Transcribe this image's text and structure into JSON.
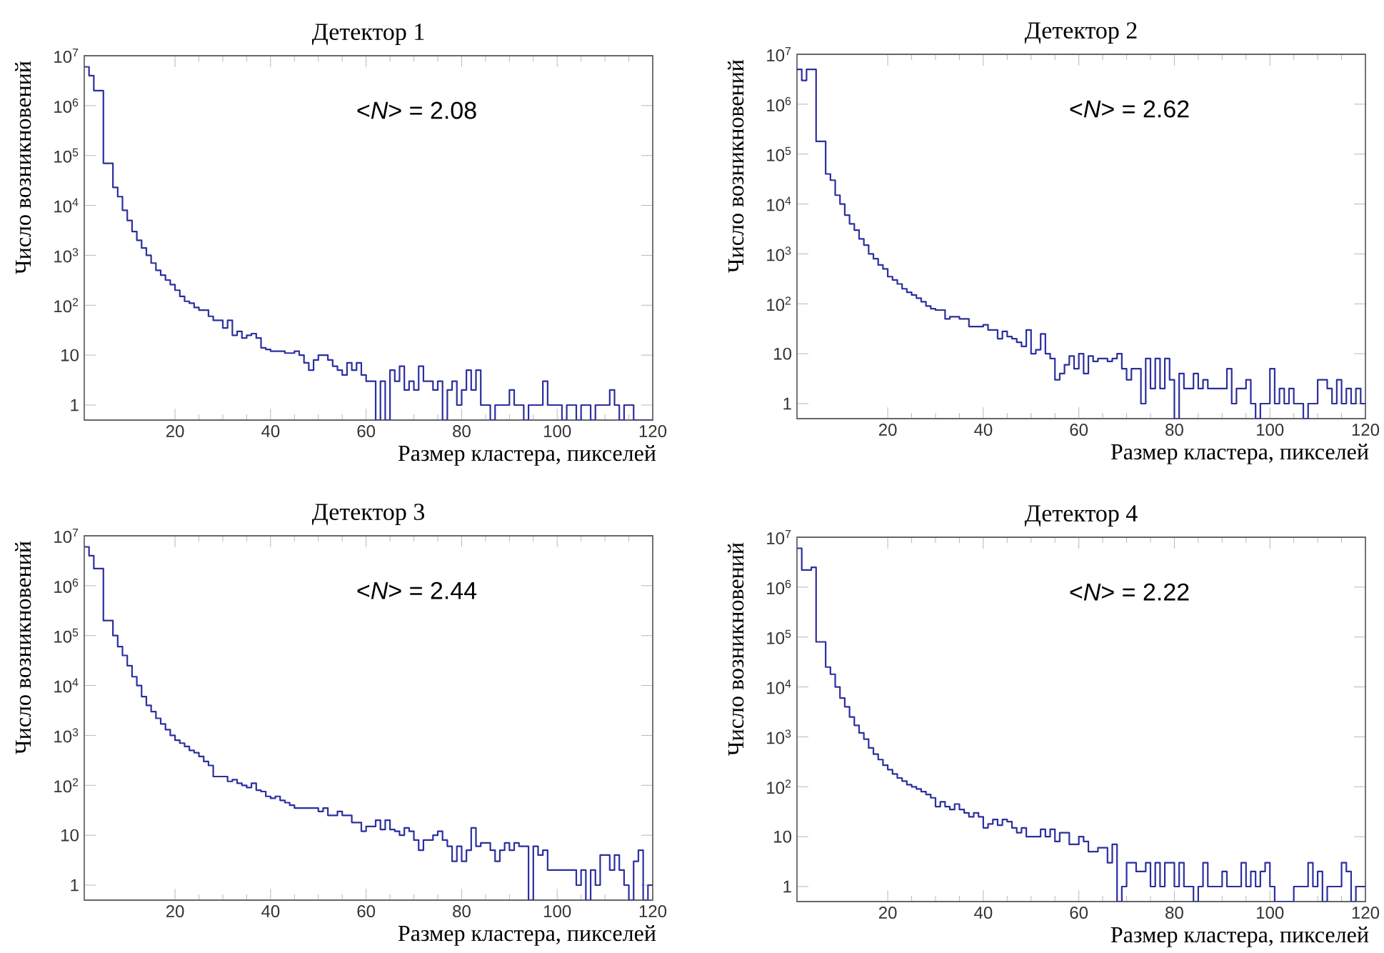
{
  "chart_data": [
    {
      "type": "histogram",
      "title": "Детектор 1",
      "xlabel": "Размер кластера, пикселей",
      "ylabel": "Число возникновений",
      "annotations": [
        "<*N*> = 2.08"
      ],
      "color": "#2b2f9e",
      "log": true,
      "xlim": [
        1,
        120
      ],
      "xticks": [
        20,
        40,
        60,
        80,
        100,
        120
      ],
      "ylim": [
        0.5,
        10000000
      ],
      "yticks": [
        1,
        10,
        {
          "value": 100,
          "label": "10$^{2}$"
        },
        {
          "value": 1000,
          "label": "10$^{3}$"
        },
        {
          "value": 10000,
          "label": "10$^{4}$"
        },
        {
          "value": 100000,
          "label": "10$^{5}$"
        },
        {
          "value": 1000000,
          "label": "10$^{6}$"
        },
        {
          "value": 10000000,
          "label": "10$^{7}$"
        }
      ],
      "bins": [
        1,
        2,
        3,
        4,
        5,
        6,
        7,
        8,
        9,
        10,
        11,
        12,
        13,
        14,
        15,
        16,
        17,
        18,
        19,
        20,
        21,
        22,
        23,
        24,
        25,
        26,
        27,
        28,
        29,
        30,
        31,
        32,
        33,
        34,
        35,
        36,
        37,
        38,
        39,
        40,
        41,
        42,
        43,
        44,
        45,
        46,
        47,
        48,
        49,
        50,
        51,
        52,
        53,
        54,
        55,
        56,
        57,
        58,
        59,
        60,
        61,
        62,
        63,
        64,
        65,
        66,
        67,
        68,
        69,
        70,
        71,
        72,
        73,
        74,
        75,
        76,
        77,
        78,
        79,
        80,
        81,
        82,
        83,
        84,
        85,
        86,
        87,
        88,
        89,
        90,
        91,
        92,
        93,
        94,
        95,
        96,
        97,
        98,
        99,
        100,
        101,
        102,
        103,
        104,
        105,
        106,
        107,
        108,
        109,
        110,
        111,
        112,
        113,
        114,
        115,
        116,
        117,
        118,
        119,
        120
      ],
      "values": [
        6000000.0,
        4000000.0,
        2000000.0,
        2000000.0,
        70000.0,
        70000.0,
        23000.0,
        15000.0,
        8000.0,
        5000.0,
        3000.0,
        2000.0,
        1400.0,
        1000.0,
        700,
        500,
        400,
        320,
        260,
        200,
        150,
        120,
        110,
        90,
        80,
        80,
        60,
        50,
        50,
        35,
        50,
        25,
        30,
        22,
        25,
        27,
        22,
        14,
        13,
        12,
        12,
        12,
        11,
        11,
        12,
        10,
        7,
        5,
        8,
        10,
        10,
        8,
        6,
        5,
        4,
        7,
        5,
        7,
        4,
        3,
        3,
        null,
        3,
        null,
        5,
        3,
        6,
        2,
        3,
        2,
        6,
        3,
        3,
        2,
        3,
        null,
        2,
        3,
        1,
        2,
        5,
        2,
        5,
        1,
        1,
        null,
        1,
        1,
        1,
        2,
        1,
        1,
        null,
        1,
        1,
        1,
        3,
        1,
        1,
        1,
        null,
        1,
        1,
        null,
        1,
        1,
        null,
        1,
        1,
        1,
        2,
        1,
        null,
        1,
        1,
        null,
        null,
        null,
        null
      ]
    },
    {
      "type": "histogram",
      "title": "Детектор 2",
      "xlabel": "Размер кластера, пикселей",
      "ylabel": "Число возникновений",
      "annotations": [
        "<*N*> = 2.62"
      ],
      "color": "#2b2f9e",
      "log": true,
      "xlim": [
        1,
        120
      ],
      "xticks": [
        20,
        40,
        60,
        80,
        100,
        120
      ],
      "ylim": [
        0.5,
        10000000
      ],
      "yticks": [
        1,
        10,
        {
          "value": 100,
          "label": "10$^{2}$"
        },
        {
          "value": 1000,
          "label": "10$^{3}$"
        },
        {
          "value": 10000,
          "label": "10$^{4}$"
        },
        {
          "value": 100000,
          "label": "10$^{5}$"
        },
        {
          "value": 1000000,
          "label": "10$^{6}$"
        },
        {
          "value": 10000000,
          "label": "10$^{7}$"
        }
      ],
      "bins": [
        1,
        2,
        3,
        4,
        5,
        6,
        7,
        8,
        9,
        10,
        11,
        12,
        13,
        14,
        15,
        16,
        17,
        18,
        19,
        20,
        21,
        22,
        23,
        24,
        25,
        26,
        27,
        28,
        29,
        30,
        31,
        32,
        33,
        34,
        35,
        36,
        37,
        38,
        39,
        40,
        41,
        42,
        43,
        44,
        45,
        46,
        47,
        48,
        49,
        50,
        51,
        52,
        53,
        54,
        55,
        56,
        57,
        58,
        59,
        60,
        61,
        62,
        63,
        64,
        65,
        66,
        67,
        68,
        69,
        70,
        71,
        72,
        73,
        74,
        75,
        76,
        77,
        78,
        79,
        80,
        81,
        82,
        83,
        84,
        85,
        86,
        87,
        88,
        89,
        90,
        91,
        92,
        93,
        94,
        95,
        96,
        97,
        98,
        99,
        100,
        101,
        102,
        103,
        104,
        105,
        106,
        107,
        108,
        109,
        110,
        111,
        112,
        113,
        114,
        115,
        116,
        117,
        118,
        119,
        120
      ],
      "values": [
        5000000.0,
        3000000.0,
        5000000.0,
        5000000.0,
        180000.0,
        180000.0,
        40000.0,
        30000.0,
        15000.0,
        10000.0,
        6000.0,
        4000.0,
        3000.0,
        2000.0,
        1500.0,
        1000.0,
        800,
        600,
        500,
        350,
        300,
        250,
        200,
        170,
        150,
        130,
        110,
        90,
        80,
        75,
        75,
        50,
        55,
        55,
        50,
        50,
        35,
        35,
        35,
        38,
        30,
        30,
        20,
        28,
        22,
        20,
        17,
        14,
        30,
        10,
        12,
        25,
        10,
        8,
        3,
        4,
        6,
        9,
        5,
        10,
        4,
        9,
        7,
        8,
        8,
        7,
        8,
        10,
        5,
        3,
        5,
        5,
        1,
        8,
        2,
        8,
        2,
        8,
        3,
        null,
        4,
        2,
        2,
        4,
        2,
        3,
        2,
        2,
        2,
        2,
        5,
        1,
        2,
        2,
        3,
        1,
        null,
        1,
        1,
        5,
        1,
        2,
        1,
        2,
        1,
        1,
        null,
        1,
        1,
        3,
        3,
        2,
        1,
        3,
        1,
        2,
        1,
        2,
        1
      ]
    },
    {
      "type": "histogram",
      "title": "Детектор 3",
      "xlabel": "Размер кластера, пикселей",
      "ylabel": "Число возникновений",
      "annotations": [
        "<*N*> = 2.44"
      ],
      "color": "#2b2f9e",
      "log": true,
      "xlim": [
        1,
        120
      ],
      "xticks": [
        20,
        40,
        60,
        80,
        100,
        120
      ],
      "ylim": [
        0.5,
        10000000
      ],
      "yticks": [
        1,
        10,
        {
          "value": 100,
          "label": "10$^{2}$"
        },
        {
          "value": 1000,
          "label": "10$^{3}$"
        },
        {
          "value": 10000,
          "label": "10$^{4}$"
        },
        {
          "value": 100000,
          "label": "10$^{5}$"
        },
        {
          "value": 1000000,
          "label": "10$^{6}$"
        },
        {
          "value": 10000000,
          "label": "10$^{7}$"
        }
      ],
      "bins": [
        1,
        2,
        3,
        4,
        5,
        6,
        7,
        8,
        9,
        10,
        11,
        12,
        13,
        14,
        15,
        16,
        17,
        18,
        19,
        20,
        21,
        22,
        23,
        24,
        25,
        26,
        27,
        28,
        29,
        30,
        31,
        32,
        33,
        34,
        35,
        36,
        37,
        38,
        39,
        40,
        41,
        42,
        43,
        44,
        45,
        46,
        47,
        48,
        49,
        50,
        51,
        52,
        53,
        54,
        55,
        56,
        57,
        58,
        59,
        60,
        61,
        62,
        63,
        64,
        65,
        66,
        67,
        68,
        69,
        70,
        71,
        72,
        73,
        74,
        75,
        76,
        77,
        78,
        79,
        80,
        81,
        82,
        83,
        84,
        85,
        86,
        87,
        88,
        89,
        90,
        91,
        92,
        93,
        94,
        95,
        96,
        97,
        98,
        99,
        100,
        101,
        102,
        103,
        104,
        105,
        106,
        107,
        108,
        109,
        110,
        111,
        112,
        113,
        114,
        115,
        116,
        117,
        118,
        119,
        120
      ],
      "values": [
        6000000.0,
        4000000.0,
        2200000.0,
        2200000.0,
        200000.0,
        200000.0,
        100000.0,
        60000.0,
        40000.0,
        25000.0,
        15000.0,
        10000.0,
        6000.0,
        4000.0,
        3000.0,
        2200.0,
        1700.0,
        1300.0,
        1000.0,
        800,
        700,
        600,
        500,
        450,
        380,
        300,
        250,
        150,
        150,
        150,
        120,
        130,
        110,
        100,
        90,
        110,
        80,
        75,
        60,
        55,
        60,
        50,
        45,
        40,
        35,
        35,
        35,
        35,
        35,
        30,
        35,
        25,
        25,
        30,
        25,
        25,
        18,
        18,
        12,
        15,
        15,
        20,
        13,
        20,
        13,
        12,
        10,
        14,
        12,
        8,
        5,
        8,
        8,
        10,
        12,
        8,
        6,
        3,
        6,
        3,
        5,
        14,
        6,
        7,
        7,
        5,
        3,
        5,
        7,
        5,
        7,
        6,
        6,
        null,
        6,
        4,
        5,
        2,
        2,
        2,
        2,
        2,
        2,
        1,
        2,
        null,
        2,
        1,
        4,
        4,
        2,
        4,
        2,
        1,
        null,
        3,
        5,
        null,
        1
      ]
    },
    {
      "type": "histogram",
      "title": "Детектор 4",
      "xlabel": "Размер кластера, пикселей",
      "ylabel": "Число возникновений",
      "annotations": [
        "<*N*> = 2.22"
      ],
      "color": "#2b2f9e",
      "log": true,
      "xlim": [
        1,
        120
      ],
      "xticks": [
        20,
        40,
        60,
        80,
        100,
        120
      ],
      "ylim": [
        0.5,
        10000000
      ],
      "yticks": [
        1,
        10,
        {
          "value": 100,
          "label": "10$^{2}$"
        },
        {
          "value": 1000,
          "label": "10$^{3}$"
        },
        {
          "value": 10000,
          "label": "10$^{4}$"
        },
        {
          "value": 100000,
          "label": "10$^{5}$"
        },
        {
          "value": 1000000,
          "label": "10$^{6}$"
        },
        {
          "value": 10000000,
          "label": "10$^{7}$"
        }
      ],
      "bins": [
        1,
        2,
        3,
        4,
        5,
        6,
        7,
        8,
        9,
        10,
        11,
        12,
        13,
        14,
        15,
        16,
        17,
        18,
        19,
        20,
        21,
        22,
        23,
        24,
        25,
        26,
        27,
        28,
        29,
        30,
        31,
        32,
        33,
        34,
        35,
        36,
        37,
        38,
        39,
        40,
        41,
        42,
        43,
        44,
        45,
        46,
        47,
        48,
        49,
        50,
        51,
        52,
        53,
        54,
        55,
        56,
        57,
        58,
        59,
        60,
        61,
        62,
        63,
        64,
        65,
        66,
        67,
        68,
        69,
        70,
        71,
        72,
        73,
        74,
        75,
        76,
        77,
        78,
        79,
        80,
        81,
        82,
        83,
        84,
        85,
        86,
        87,
        88,
        89,
        90,
        91,
        92,
        93,
        94,
        95,
        96,
        97,
        98,
        99,
        100,
        101,
        102,
        103,
        104,
        105,
        106,
        107,
        108,
        109,
        110,
        111,
        112,
        113,
        114,
        115,
        116,
        117,
        118,
        119,
        120
      ],
      "values": [
        6000000.0,
        2200000.0,
        2200000.0,
        2500000.0,
        80000.0,
        80000.0,
        25000.0,
        18000.0,
        10000.0,
        6000.0,
        4000.0,
        2500.0,
        1700.0,
        1200.0,
        900,
        600,
        450,
        350,
        270,
        220,
        180,
        150,
        130,
        110,
        100,
        90,
        80,
        70,
        60,
        40,
        50,
        40,
        35,
        45,
        35,
        30,
        25,
        30,
        25,
        15,
        18,
        22,
        17,
        22,
        20,
        15,
        12,
        15,
        10,
        10,
        10,
        14,
        10,
        14,
        8,
        12,
        12,
        7,
        7,
        10,
        8,
        5,
        5,
        6,
        6,
        3,
        7,
        null,
        1,
        3,
        3,
        2,
        2,
        3,
        1,
        3,
        1,
        3,
        3,
        1,
        3,
        1,
        1,
        null,
        1,
        3,
        1,
        1,
        1,
        2,
        1,
        1,
        1,
        3,
        1,
        2,
        1,
        2,
        3,
        1,
        null,
        null,
        null,
        null,
        1,
        1,
        1,
        3,
        1,
        2,
        null,
        1,
        1,
        1,
        3,
        2,
        null,
        1,
        1
      ]
    }
  ]
}
